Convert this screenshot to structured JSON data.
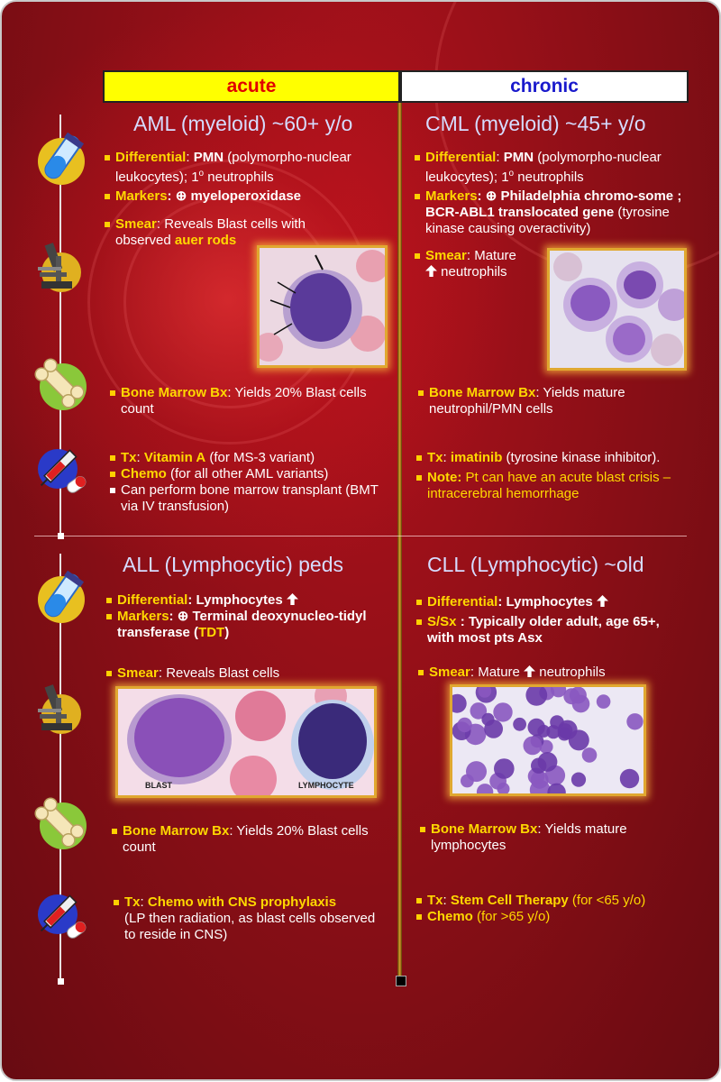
{
  "header": {
    "acute": "acute",
    "chronic": "chronic"
  },
  "aml": {
    "title": "AML (myeloid)  ~60+ y/o",
    "differential_label": "Differential",
    "differential_text_a": ": ",
    "differential_bold": "PMN",
    "differential_text_b": " (polymorpho-nuclear leukocytes); 1",
    "differential_sup": "o",
    "differential_text_c": " neutrophils",
    "markers_label": "Markers",
    "markers_text": ":  ⊕ myeloperoxidase",
    "smear_label": "Smear",
    "smear_text": ": Reveals Blast cells with observed ",
    "smear_highlight": "auer rods",
    "bm_label": "Bone Marrow Bx",
    "bm_text": ":  Yields 20% Blast cells count",
    "tx_label": "Tx",
    "tx_text_a": ":  ",
    "tx_highlight": "Vitamin A",
    "tx_text_b": " (for MS-3 variant)",
    "chemo_label": "Chemo",
    "chemo_text": " (for all other AML variants)",
    "bmt_text": "Can perform bone marrow transplant (BMT via IV transfusion)"
  },
  "cml": {
    "title": "CML (myeloid) ~45+ y/o",
    "differential_label": "Differential",
    "differential_bold": "PMN",
    "differential_text_b": " (polymorpho-nuclear leukocytes); 1",
    "differential_sup": "o",
    "differential_text_c": " neutrophils",
    "markers_label": "Markers",
    "markers_bold": ":  ⊕ Philadelphia chromo-some ; BCR-ABL1 translocated gene",
    "markers_text": " (tyrosine kinase causing overactivity)",
    "smear_label": "Smear",
    "smear_text_a": ": Mature",
    "smear_text_b": "neutrophils",
    "bm_label": "Bone Marrow Bx",
    "bm_text": ":  Yields mature neutrophil/PMN cells",
    "tx_label": "Tx",
    "tx_text_a": ":  ",
    "tx_highlight": "imatinib",
    "tx_text_b": " (tyrosine kinase inhibitor).",
    "note_label": "Note:",
    "note_text": " Pt can have an acute blast crisis – intracerebral hemorrhage"
  },
  "all": {
    "title": "ALL (Lymphocytic) peds",
    "differential_label": "Differential",
    "differential_bold": ": Lymphocytes",
    "markers_label": "Markers",
    "markers_bold_a": ":  ⊕ Terminal deoxynucleo-tidyl transferase (",
    "markers_highlight": "TDT",
    "markers_bold_b": ")",
    "smear_label": "Smear",
    "smear_text": ": Reveals Blast cells",
    "img_label_blast": "BLAST",
    "img_label_lymph": "LYMPHOCYTE",
    "bm_label": "Bone Marrow Bx",
    "bm_text": ":  Yields 20% Blast cells count",
    "tx_label": "Tx",
    "tx_text_a": ":  ",
    "tx_highlight": "Chemo with CNS prophylaxis",
    "tx_text_b": "(LP then radiation, as blast cells observed to reside in CNS)"
  },
  "cll": {
    "title": "CLL (Lymphocytic) ~old",
    "differential_label": "Differential",
    "differential_bold": ": Lymphocytes",
    "ssx_label": "S/Sx",
    "ssx_bold": " : Typically older adult, age 65+, with most pts Asx",
    "smear_label": "Smear",
    "smear_text_a": ": Mature ",
    "smear_text_b": " neutrophils",
    "bm_label": "Bone Marrow Bx",
    "bm_text": ":  Yields mature lymphocytes",
    "tx_label": "Tx",
    "tx_text_a": ":  ",
    "tx_highlight": "Stem Cell Therapy",
    "tx_text_b": "  (for <65 y/o)",
    "chemo_label": "Chemo",
    "chemo_text": "  (for >65 y/o)"
  },
  "icons": [
    "test-tube-icon",
    "microscope-icon",
    "bone-icon",
    "syringe-pill-icon"
  ],
  "colors": {
    "acute_bg": "#ffff00",
    "acute_text": "#e00000",
    "chronic_text": "#1a1acc",
    "label_yellow": "#ffd800",
    "title": "#d6dcff",
    "background": "#8a0f17"
  }
}
